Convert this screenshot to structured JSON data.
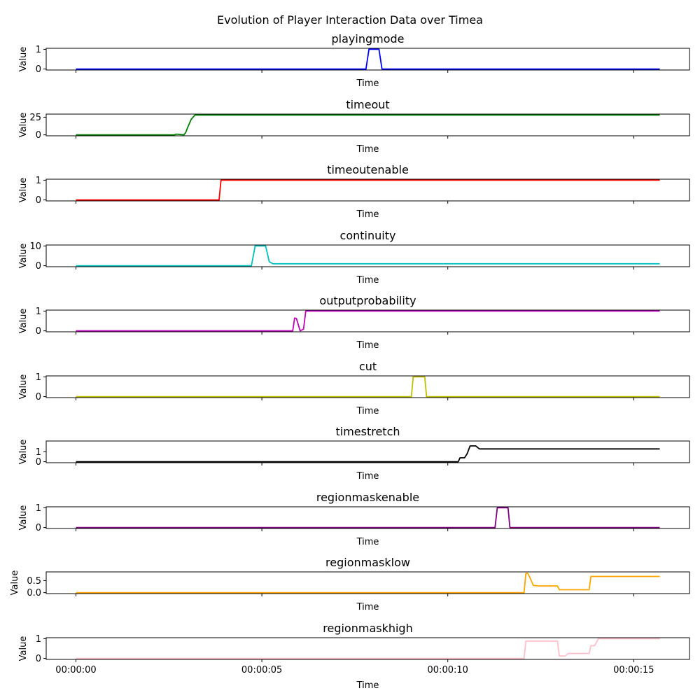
{
  "chart_data": {
    "type": "line",
    "title": "Evolution of Player Interaction Data over Timea",
    "x_tick_labels": [
      "00:00:00",
      "00:00:05",
      "00:00:10",
      "00:00:15"
    ],
    "x_tick_values": [
      0,
      5,
      10,
      15
    ],
    "xlim": [
      -0.8,
      16.5
    ],
    "xlabel": "Time",
    "ylabel": "Value",
    "grid": false,
    "panels": [
      {
        "name": "playingmode",
        "color": "#0000ff",
        "yticks": [
          0,
          1
        ],
        "ytick_labels": [
          "0",
          "1"
        ],
        "ylim": [
          -0.05,
          1.05
        ],
        "x": [
          0,
          7.8,
          7.88,
          8.15,
          8.23,
          15.7
        ],
        "y": [
          0,
          0,
          1,
          1,
          0,
          0
        ]
      },
      {
        "name": "timeout",
        "color": "#008000",
        "yticks": [
          0,
          25
        ],
        "ytick_labels": [
          "0",
          "25"
        ],
        "ylim": [
          -1.4,
          29.4
        ],
        "x": [
          0,
          2.65,
          2.7,
          2.9,
          2.95,
          3.0,
          3.1,
          3.2,
          15.7
        ],
        "y": [
          0,
          0,
          1,
          0,
          3,
          10,
          22,
          28,
          28
        ]
      },
      {
        "name": "timeoutenable",
        "color": "#ff0000",
        "yticks": [
          0,
          1
        ],
        "ytick_labels": [
          "0",
          "1"
        ],
        "ylim": [
          -0.05,
          1.05
        ],
        "x": [
          0,
          3.85,
          3.9,
          15.7
        ],
        "y": [
          0,
          0,
          1,
          1
        ]
      },
      {
        "name": "continuity",
        "color": "#00bfbf",
        "yticks": [
          0,
          10
        ],
        "ytick_labels": [
          "0",
          "10"
        ],
        "ylim": [
          -0.5,
          10.5
        ],
        "x": [
          0,
          4.72,
          4.82,
          5.1,
          5.15,
          5.2,
          5.3,
          15.7
        ],
        "y": [
          0,
          0,
          10,
          10,
          6,
          2,
          1,
          1
        ]
      },
      {
        "name": "outputprobability",
        "color": "#bf00bf",
        "yticks": [
          0,
          1
        ],
        "ytick_labels": [
          "0",
          "1"
        ],
        "ylim": [
          -0.05,
          1.05
        ],
        "x": [
          0,
          5.83,
          5.88,
          5.93,
          6.03,
          6.12,
          6.18,
          15.7
        ],
        "y": [
          0,
          0,
          0.65,
          0.62,
          0,
          0.08,
          1,
          1
        ]
      },
      {
        "name": "cut",
        "color": "#bfbf00",
        "yticks": [
          0,
          1
        ],
        "ytick_labels": [
          "0",
          "1"
        ],
        "ylim": [
          -0.05,
          1.05
        ],
        "x": [
          0,
          9.02,
          9.07,
          9.38,
          9.43,
          15.7
        ],
        "y": [
          0,
          0,
          1,
          1,
          0,
          0
        ]
      },
      {
        "name": "timestretch",
        "color": "#000000",
        "yticks": [
          0,
          1
        ],
        "ytick_labels": [
          "0",
          "1"
        ],
        "ylim": [
          -0.1,
          2.1
        ],
        "x": [
          0,
          10.28,
          10.33,
          10.45,
          10.52,
          10.6,
          10.75,
          10.85,
          15.7
        ],
        "y": [
          0,
          0,
          0.4,
          0.4,
          0.8,
          1.6,
          1.6,
          1.3,
          1.3
        ]
      },
      {
        "name": "regionmaskenable",
        "color": "#800080",
        "yticks": [
          0,
          1
        ],
        "ytick_labels": [
          "0",
          "1"
        ],
        "ylim": [
          -0.05,
          1.05
        ],
        "x": [
          0,
          11.27,
          11.33,
          11.62,
          11.67,
          15.7
        ],
        "y": [
          0,
          0,
          1,
          1,
          0,
          0
        ]
      },
      {
        "name": "regionmasklow",
        "color": "#ffa500",
        "yticks": [
          0,
          0.5
        ],
        "ytick_labels": [
          "0.0",
          "0.5"
        ],
        "ylim": [
          -0.04,
          0.86
        ],
        "x": [
          0,
          12.05,
          12.1,
          12.15,
          12.2,
          12.3,
          12.45,
          12.95,
          13.0,
          13.8,
          13.85,
          15.7
        ],
        "y": [
          0,
          0,
          0.8,
          0.8,
          0.65,
          0.3,
          0.28,
          0.28,
          0.12,
          0.12,
          0.67,
          0.67
        ]
      },
      {
        "name": "regionmaskhigh",
        "color": "#ffc0cb",
        "yticks": [
          0,
          1
        ],
        "ytick_labels": [
          "0",
          "1"
        ],
        "ylim": [
          -0.05,
          1.05
        ],
        "x": [
          0,
          12.05,
          12.1,
          12.95,
          13.0,
          13.15,
          13.25,
          13.8,
          13.85,
          13.95,
          14.05,
          15.7
        ],
        "y": [
          0,
          0,
          0.88,
          0.88,
          0.12,
          0.12,
          0.25,
          0.25,
          0.65,
          0.65,
          1,
          1
        ]
      }
    ]
  }
}
